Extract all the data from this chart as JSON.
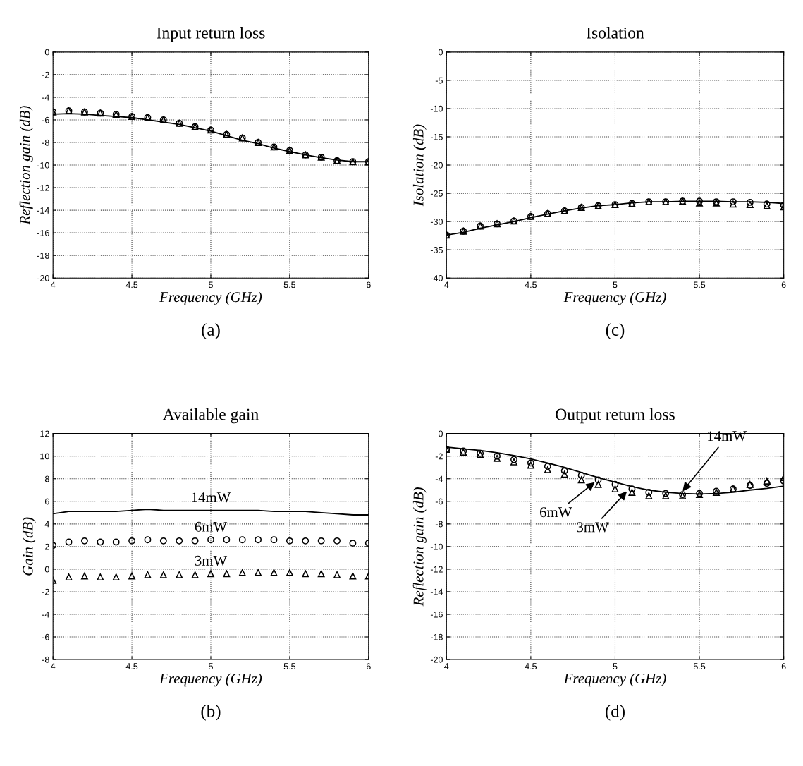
{
  "chart_data": [
    {
      "type": "line",
      "title": "Input return loss",
      "xlabel": "Frequency (GHz)",
      "ylabel": "Reflection gain (dB)",
      "x": [
        4,
        4.1,
        4.2,
        4.3,
        4.4,
        4.5,
        4.6,
        4.7,
        4.8,
        4.9,
        5,
        5.1,
        5.2,
        5.3,
        5.4,
        5.5,
        5.6,
        5.7,
        5.8,
        5.9,
        6
      ],
      "xlim": [
        4,
        6
      ],
      "xticks": [
        4,
        4.5,
        5,
        5.5,
        6
      ],
      "ylim": [
        -20,
        0
      ],
      "yticks": [
        -20,
        -18,
        -16,
        -14,
        -12,
        -10,
        -8,
        -6,
        -4,
        -2,
        0
      ],
      "grid": true,
      "series": [
        {
          "type": "line",
          "color": "#000000",
          "marker": "none",
          "values": [
            -5.5,
            -5.45,
            -5.5,
            -5.6,
            -5.7,
            -5.8,
            -6.0,
            -6.2,
            -6.4,
            -6.7,
            -7.0,
            -7.4,
            -7.8,
            -8.1,
            -8.5,
            -8.8,
            -9.1,
            -9.35,
            -9.55,
            -9.7,
            -9.7
          ]
        },
        {
          "type": "scatter",
          "color": "#000000",
          "marker": "circle",
          "values": [
            -5.3,
            -5.2,
            -5.3,
            -5.4,
            -5.5,
            -5.7,
            -5.8,
            -6.0,
            -6.3,
            -6.6,
            -6.9,
            -7.3,
            -7.6,
            -8.0,
            -8.4,
            -8.7,
            -9.1,
            -9.3,
            -9.6,
            -9.7,
            -9.7
          ]
        },
        {
          "type": "scatter",
          "color": "#000000",
          "marker": "triangle",
          "values": [
            -5.3,
            -5.2,
            -5.3,
            -5.4,
            -5.5,
            -5.7,
            -5.8,
            -6.0,
            -6.3,
            -6.6,
            -6.9,
            -7.3,
            -7.6,
            -8.0,
            -8.4,
            -8.7,
            -9.1,
            -9.3,
            -9.6,
            -9.7,
            -9.7
          ]
        }
      ],
      "annotations": [
        "(a)"
      ]
    },
    {
      "type": "line",
      "title": "Isolation",
      "xlabel": "Frequency (GHz)",
      "ylabel": "Isolation (dB)",
      "x": [
        4,
        4.1,
        4.2,
        4.3,
        4.4,
        4.5,
        4.6,
        4.7,
        4.8,
        4.9,
        5,
        5.1,
        5.2,
        5.3,
        5.4,
        5.5,
        5.6,
        5.7,
        5.8,
        5.9,
        6
      ],
      "xlim": [
        4,
        6
      ],
      "xticks": [
        4,
        4.5,
        5,
        5.5,
        6
      ],
      "ylim": [
        -40,
        0
      ],
      "yticks": [
        -40,
        -35,
        -30,
        -25,
        -20,
        -15,
        -10,
        -5,
        0
      ],
      "grid": true,
      "series": [
        {
          "type": "line",
          "color": "#000000",
          "marker": "none",
          "values": [
            -32.4,
            -31.9,
            -31.2,
            -30.6,
            -30.0,
            -29.3,
            -28.7,
            -28.1,
            -27.6,
            -27.2,
            -27.0,
            -26.7,
            -26.5,
            -26.5,
            -26.4,
            -26.4,
            -26.4,
            -26.5,
            -26.5,
            -26.6,
            -26.8
          ]
        },
        {
          "type": "scatter",
          "color": "#000000",
          "marker": "circle",
          "values": [
            -32.4,
            -31.7,
            -30.8,
            -30.4,
            -29.9,
            -29.1,
            -28.6,
            -28.1,
            -27.5,
            -27.2,
            -27.0,
            -26.8,
            -26.5,
            -26.5,
            -26.4,
            -26.4,
            -26.5,
            -26.5,
            -26.6,
            -26.9,
            -27.1
          ]
        },
        {
          "type": "scatter",
          "color": "#000000",
          "marker": "triangle",
          "values": [
            -32.4,
            -31.7,
            -30.8,
            -30.4,
            -29.9,
            -29.1,
            -28.6,
            -28.1,
            -27.5,
            -27.2,
            -27.0,
            -26.8,
            -26.5,
            -26.5,
            -26.4,
            -26.7,
            -26.7,
            -26.9,
            -27.0,
            -27.2,
            -27.4
          ]
        }
      ],
      "annotations": [
        "(c)"
      ]
    },
    {
      "type": "line",
      "title": "Available gain",
      "xlabel": "Frequency (GHz)",
      "ylabel": "Gain (dB)",
      "x": [
        4,
        4.1,
        4.2,
        4.3,
        4.4,
        4.5,
        4.6,
        4.7,
        4.8,
        4.9,
        5,
        5.1,
        5.2,
        5.3,
        5.4,
        5.5,
        5.6,
        5.7,
        5.8,
        5.9,
        6
      ],
      "xlim": [
        4,
        6
      ],
      "xticks": [
        4,
        4.5,
        5,
        5.5,
        6
      ],
      "ylim": [
        -8,
        12
      ],
      "yticks": [
        -8,
        -6,
        -4,
        -2,
        0,
        2,
        4,
        6,
        8,
        10,
        12
      ],
      "grid": true,
      "series": [
        {
          "type": "line",
          "color": "#000000",
          "marker": "none",
          "values": [
            4.9,
            5.1,
            5.1,
            5.1,
            5.1,
            5.2,
            5.3,
            5.2,
            5.2,
            5.2,
            5.2,
            5.2,
            5.2,
            5.2,
            5.1,
            5.1,
            5.1,
            5.0,
            4.9,
            4.8,
            4.8
          ]
        },
        {
          "type": "scatter",
          "color": "#000000",
          "marker": "circle",
          "values": [
            2.1,
            2.4,
            2.5,
            2.4,
            2.4,
            2.5,
            2.6,
            2.5,
            2.5,
            2.5,
            2.6,
            2.6,
            2.6,
            2.6,
            2.6,
            2.5,
            2.5,
            2.5,
            2.5,
            2.3,
            2.3
          ]
        },
        {
          "type": "scatter",
          "color": "#000000",
          "marker": "triangle",
          "values": [
            -1.0,
            -0.7,
            -0.6,
            -0.7,
            -0.7,
            -0.6,
            -0.5,
            -0.5,
            -0.5,
            -0.5,
            -0.4,
            -0.4,
            -0.3,
            -0.3,
            -0.3,
            -0.3,
            -0.4,
            -0.4,
            -0.5,
            -0.6,
            -0.6
          ]
        }
      ],
      "annotations": [
        {
          "text": "14mW",
          "x": 5,
          "y": 5.2
        },
        {
          "text": "6mW",
          "x": 5,
          "y": 2.6
        },
        {
          "text": "3mW",
          "x": 5,
          "y": -0.4
        },
        "(b)"
      ]
    },
    {
      "type": "line",
      "title": "Output return loss",
      "xlabel": "Frequency (GHz)",
      "ylabel": "Reflection gain (dB)",
      "x": [
        4,
        4.1,
        4.2,
        4.3,
        4.4,
        4.5,
        4.6,
        4.7,
        4.8,
        4.9,
        5,
        5.1,
        5.2,
        5.3,
        5.4,
        5.5,
        5.6,
        5.7,
        5.8,
        5.9,
        6
      ],
      "xlim": [
        4,
        6
      ],
      "xticks": [
        4,
        4.5,
        5,
        5.5,
        6
      ],
      "ylim": [
        -20,
        0
      ],
      "yticks": [
        -20,
        -18,
        -16,
        -14,
        -12,
        -10,
        -8,
        -6,
        -4,
        -2,
        0
      ],
      "grid": true,
      "series": [
        {
          "type": "line",
          "color": "#000000",
          "marker": "none",
          "values": [
            -1.2,
            -1.35,
            -1.5,
            -1.7,
            -1.95,
            -2.25,
            -2.6,
            -3.0,
            -3.45,
            -3.9,
            -4.3,
            -4.7,
            -5.0,
            -5.2,
            -5.3,
            -5.35,
            -5.3,
            -5.2,
            -5.0,
            -4.85,
            -4.65
          ]
        },
        {
          "type": "scatter",
          "color": "#000000",
          "marker": "circle",
          "values": [
            -1.4,
            -1.55,
            -1.75,
            -2.0,
            -2.3,
            -2.6,
            -2.9,
            -3.3,
            -3.7,
            -4.1,
            -4.5,
            -4.9,
            -5.2,
            -5.3,
            -5.4,
            -5.3,
            -5.1,
            -4.9,
            -4.6,
            -4.4,
            -4.2
          ]
        },
        {
          "type": "scatter",
          "color": "#000000",
          "marker": "triangle",
          "values": [
            -1.4,
            -1.65,
            -1.85,
            -2.2,
            -2.5,
            -2.8,
            -3.2,
            -3.6,
            -4.1,
            -4.5,
            -4.9,
            -5.2,
            -5.5,
            -5.5,
            -5.5,
            -5.4,
            -5.2,
            -4.9,
            -4.5,
            -4.2,
            -3.9
          ]
        }
      ],
      "annotations": [
        {
          "text": "14mW",
          "x": 5.4,
          "y": -5.1
        },
        {
          "text": "6mW",
          "x": 4.88,
          "y": -4.3
        },
        {
          "text": "3mW",
          "x": 5.07,
          "y": -5.1
        },
        "(d)"
      ]
    }
  ]
}
